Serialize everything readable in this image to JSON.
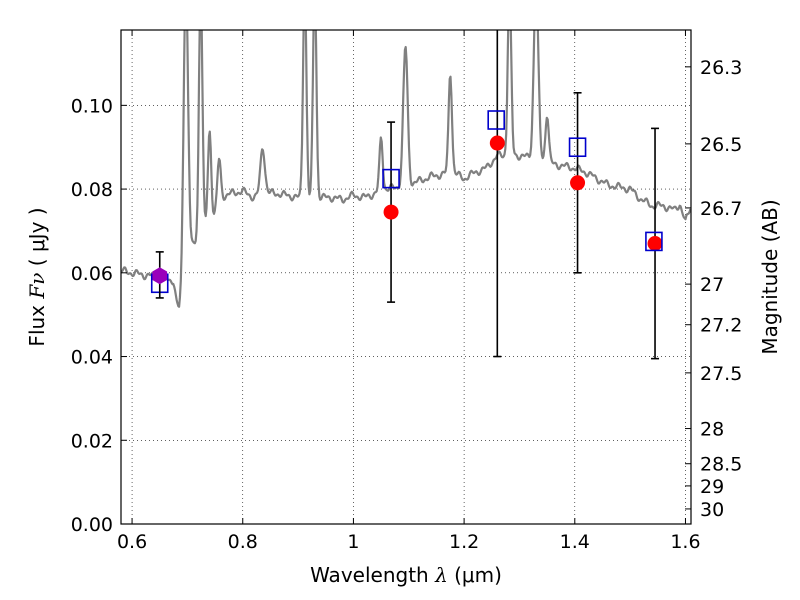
{
  "chart_data": {
    "type": "scatter",
    "title": "",
    "xlabel": "Wavelength",
    "xlabel_symbol": "λ",
    "xlabel_unit": "(μm)",
    "ylabel": "Flux",
    "ylabel_symbol": "Fν",
    "ylabel_unit": "( μJy )",
    "ylabel_right": "Magnitude (AB)",
    "xlim": [
      0.58,
      1.61
    ],
    "ylim": [
      0.0,
      0.118
    ],
    "grid": true,
    "x_ticks": [
      0.6,
      0.8,
      1.0,
      1.2,
      1.4,
      1.6
    ],
    "x_tick_labels": [
      "0.6",
      "0.8",
      "1",
      "1.2",
      "1.4",
      "1.6"
    ],
    "y_ticks": [
      0.0,
      0.02,
      0.04,
      0.06,
      0.08,
      0.1
    ],
    "y_tick_labels": [
      "0.00",
      "0.02",
      "0.04",
      "0.06",
      "0.08",
      "0.10"
    ],
    "right_ticks": [
      {
        "label": "26.3",
        "flux": 0.1092
      },
      {
        "label": "26.5",
        "flux": 0.0908
      },
      {
        "label": "26.7",
        "flux": 0.0755
      },
      {
        "label": "27",
        "flux": 0.0573
      },
      {
        "label": "27.2",
        "flux": 0.0476
      },
      {
        "label": "27.5",
        "flux": 0.0361
      },
      {
        "label": "28",
        "flux": 0.0228
      },
      {
        "label": "28.5",
        "flux": 0.0144
      },
      {
        "label": "29",
        "flux": 0.0091
      },
      {
        "label": "30",
        "flux": 0.0036
      }
    ],
    "colors": {
      "spectrum": "#808080",
      "observed": "#ff0000",
      "model": "#0000cc",
      "combined": "#9900bb",
      "errorbar": "#000000"
    },
    "spectrum_continuum": [
      [
        0.58,
        0.0605
      ],
      [
        0.6,
        0.06
      ],
      [
        0.62,
        0.0595
      ],
      [
        0.64,
        0.0592
      ],
      [
        0.66,
        0.059
      ],
      [
        0.675,
        0.058
      ],
      [
        0.68,
        0.053
      ],
      [
        0.685,
        0.051
      ],
      [
        0.69,
        0.053
      ],
      [
        0.695,
        0.06
      ],
      [
        0.7,
        0.064
      ],
      [
        0.705,
        0.065
      ],
      [
        0.72,
        0.069
      ],
      [
        0.74,
        0.072
      ],
      [
        0.75,
        0.074
      ],
      [
        0.76,
        0.078
      ],
      [
        0.78,
        0.079
      ],
      [
        0.8,
        0.0795
      ],
      [
        0.82,
        0.078
      ],
      [
        0.84,
        0.079
      ],
      [
        0.86,
        0.079
      ],
      [
        0.88,
        0.0785
      ],
      [
        0.9,
        0.078
      ],
      [
        0.92,
        0.0775
      ],
      [
        0.94,
        0.078
      ],
      [
        0.96,
        0.078
      ],
      [
        0.98,
        0.0775
      ],
      [
        1.0,
        0.0785
      ],
      [
        1.02,
        0.078
      ],
      [
        1.04,
        0.079
      ],
      [
        1.06,
        0.08
      ],
      [
        1.08,
        0.0805
      ],
      [
        1.1,
        0.081
      ],
      [
        1.12,
        0.082
      ],
      [
        1.14,
        0.083
      ],
      [
        1.16,
        0.0835
      ],
      [
        1.18,
        0.084
      ],
      [
        1.2,
        0.0825
      ],
      [
        1.22,
        0.084
      ],
      [
        1.24,
        0.085
      ],
      [
        1.26,
        0.088
      ],
      [
        1.28,
        0.088
      ],
      [
        1.3,
        0.088
      ],
      [
        1.32,
        0.0875
      ],
      [
        1.34,
        0.087
      ],
      [
        1.36,
        0.086
      ],
      [
        1.38,
        0.0855
      ],
      [
        1.4,
        0.085
      ],
      [
        1.42,
        0.084
      ],
      [
        1.44,
        0.0825
      ],
      [
        1.46,
        0.081
      ],
      [
        1.48,
        0.0805
      ],
      [
        1.5,
        0.08
      ],
      [
        1.52,
        0.0775
      ],
      [
        1.54,
        0.076
      ],
      [
        1.56,
        0.076
      ],
      [
        1.58,
        0.075
      ],
      [
        1.59,
        0.0765
      ],
      [
        1.6,
        0.072
      ],
      [
        1.61,
        0.076
      ]
    ],
    "spectrum_lines": [
      {
        "center": 0.697,
        "width": 0.004,
        "peak": 0.13
      },
      {
        "center": 0.724,
        "width": 0.003,
        "peak": 0.13
      },
      {
        "center": 0.74,
        "width": 0.003,
        "peak": 0.094
      },
      {
        "center": 0.757,
        "width": 0.003,
        "peak": 0.087
      },
      {
        "center": 0.836,
        "width": 0.004,
        "peak": 0.09
      },
      {
        "center": 0.912,
        "width": 0.003,
        "peak": 0.13
      },
      {
        "center": 0.93,
        "width": 0.003,
        "peak": 0.13
      },
      {
        "center": 1.05,
        "width": 0.003,
        "peak": 0.092
      },
      {
        "center": 1.094,
        "width": 0.004,
        "peak": 0.114
      },
      {
        "center": 1.175,
        "width": 0.003,
        "peak": 0.108
      },
      {
        "center": 1.282,
        "width": 0.003,
        "peak": 0.13
      },
      {
        "center": 1.33,
        "width": 0.004,
        "peak": 0.13
      },
      {
        "center": 1.35,
        "width": 0.003,
        "peak": 0.098
      }
    ],
    "series": [
      {
        "name": "observed",
        "marker": "circle",
        "points": [
          {
            "x": 1.068,
            "y": 0.0745,
            "yerr_low": 0.053,
            "yerr_high": 0.096
          },
          {
            "x": 1.26,
            "y": 0.091,
            "yerr_low": 0.04,
            "yerr_high": 0.12
          },
          {
            "x": 1.405,
            "y": 0.0815,
            "yerr_low": 0.06,
            "yerr_high": 0.103
          },
          {
            "x": 1.545,
            "y": 0.067,
            "yerr_low": 0.0395,
            "yerr_high": 0.0945
          }
        ]
      },
      {
        "name": "model",
        "marker": "square-open",
        "points": [
          {
            "x": 0.65,
            "y": 0.0575
          },
          {
            "x": 1.068,
            "y": 0.0825
          },
          {
            "x": 1.258,
            "y": 0.0965
          },
          {
            "x": 1.405,
            "y": 0.09
          },
          {
            "x": 1.543,
            "y": 0.0675
          }
        ]
      },
      {
        "name": "combined",
        "marker": "hexagon",
        "points": [
          {
            "x": 0.65,
            "y": 0.0593,
            "yerr_low": 0.054,
            "yerr_high": 0.065
          }
        ]
      }
    ]
  }
}
